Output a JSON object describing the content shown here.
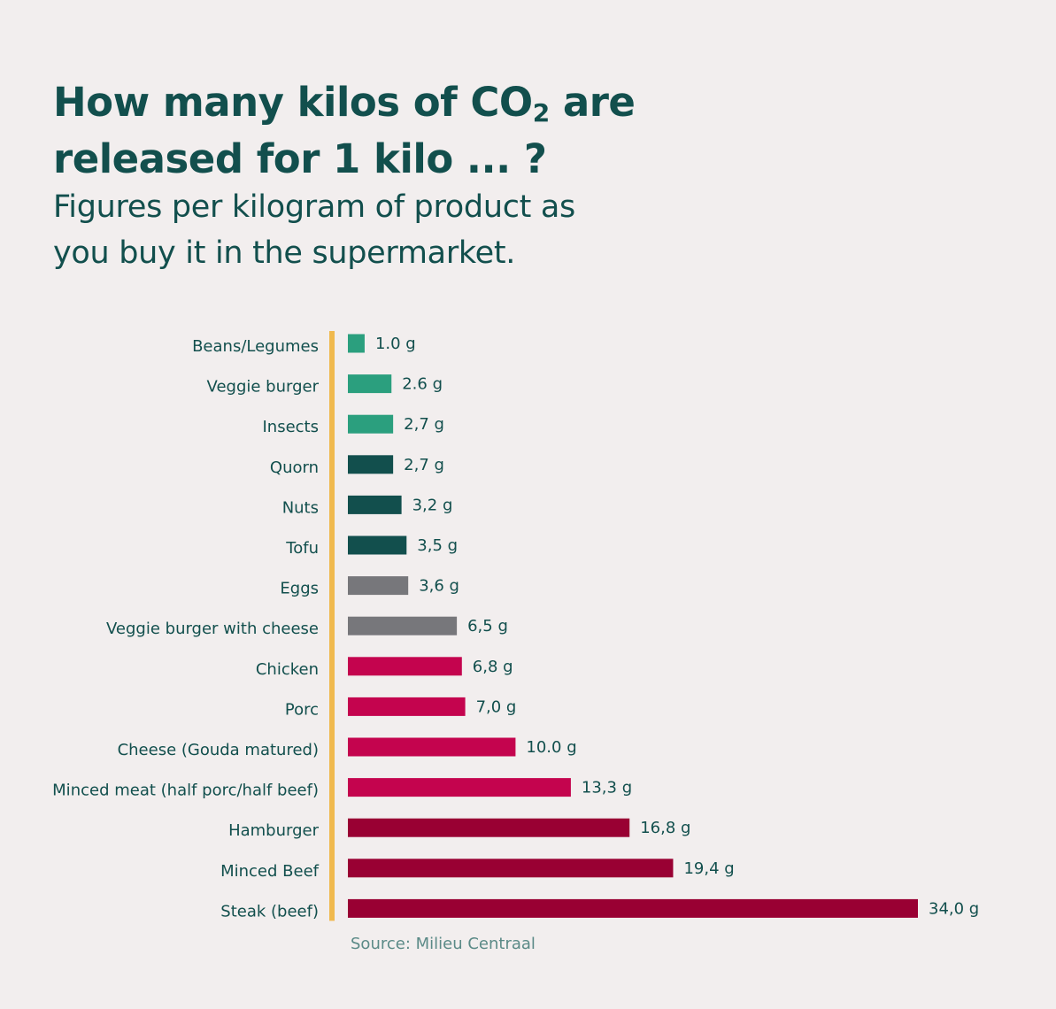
{
  "title": {
    "line1_prefix": "How many kilos of CO",
    "line1_sub": "2",
    "line1_suffix": " are",
    "line2": "released for 1 kilo ... ?"
  },
  "subtitle": {
    "line1": "Figures per kilogram of product as",
    "line2": "you buy it in the supermarket."
  },
  "source": "Source: Milieu Centraal",
  "colors": {
    "background": "#f2eeee",
    "axis": "#f0b94e",
    "light_green": "#2b9f7e",
    "dark_teal": "#124f4d",
    "gray": "#77777b",
    "pink": "#c4044e",
    "dark_red": "#990033",
    "text": "#124f4d"
  },
  "chart_data": {
    "type": "bar",
    "orientation": "horizontal",
    "title": "How many kilos of CO2 are released for 1 kilo ... ?",
    "subtitle": "Figures per kilogram of product as you buy it in the supermarket.",
    "xlabel": "",
    "ylabel": "",
    "xlim": [
      0,
      34
    ],
    "grid": false,
    "legend": "none",
    "categories": [
      "Beans/Legumes",
      "Veggie burger",
      "Insects",
      "Quorn",
      "Nuts",
      "Tofu",
      "Eggs",
      "Veggie burger with cheese",
      "Chicken",
      "Porc",
      "Cheese (Gouda matured)",
      "Minced meat (half porc/half beef)",
      "Hamburger",
      "Minced Beef",
      "Steak (beef)"
    ],
    "values": [
      1.0,
      2.6,
      2.7,
      2.7,
      3.2,
      3.5,
      3.6,
      6.5,
      6.8,
      7.0,
      10.0,
      13.3,
      16.8,
      19.4,
      34.0
    ],
    "value_labels": [
      "1.0 g",
      "2.6 g",
      "2,7 g",
      "2,7 g",
      "3,2 g",
      "3,5 g",
      "3,6 g",
      "6,5 g",
      "6,8 g",
      "7,0 g",
      "10.0 g",
      "13,3 g",
      "16,8 g",
      "19,4 g",
      "34,0 g"
    ],
    "bar_colors": [
      "#2b9f7e",
      "#2b9f7e",
      "#2b9f7e",
      "#124f4d",
      "#124f4d",
      "#124f4d",
      "#77777b",
      "#77777b",
      "#c4044e",
      "#c4044e",
      "#c4044e",
      "#c4044e",
      "#990033",
      "#990033",
      "#990033"
    ],
    "source": "Source: Milieu Centraal"
  }
}
